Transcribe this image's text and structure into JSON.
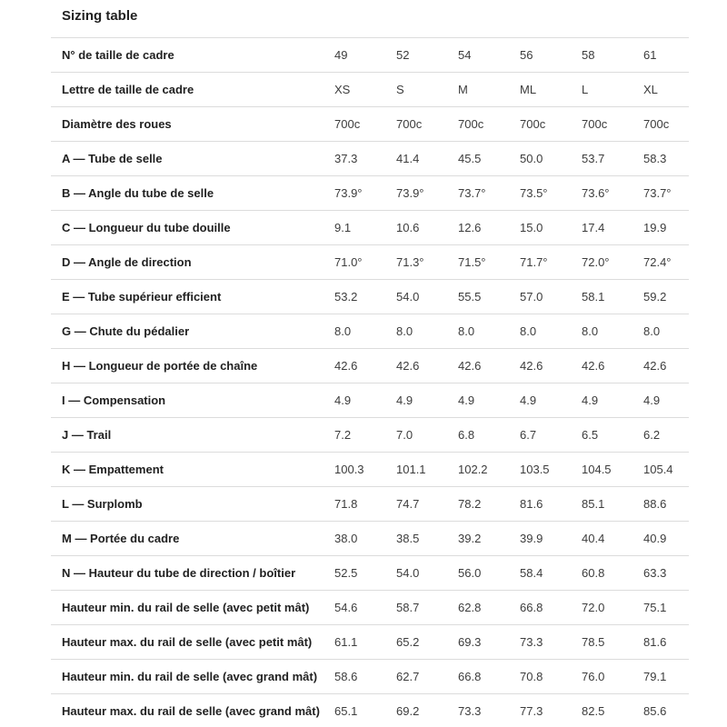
{
  "title": "Sizing table",
  "table": {
    "size_numbers": [
      "49",
      "52",
      "54",
      "56",
      "58",
      "61"
    ],
    "rows": [
      {
        "label": "N° de taille de cadre",
        "values": [
          "49",
          "52",
          "54",
          "56",
          "58",
          "61"
        ]
      },
      {
        "label": "Lettre de taille de cadre",
        "values": [
          "XS",
          "S",
          "M",
          "ML",
          "L",
          "XL"
        ]
      },
      {
        "label": "Diamètre des roues",
        "values": [
          "700c",
          "700c",
          "700c",
          "700c",
          "700c",
          "700c"
        ]
      },
      {
        "label": "A — Tube de selle",
        "values": [
          "37.3",
          "41.4",
          "45.5",
          "50.0",
          "53.7",
          "58.3"
        ]
      },
      {
        "label": "B — Angle du tube de selle",
        "values": [
          "73.9°",
          "73.9°",
          "73.7°",
          "73.5°",
          "73.6°",
          "73.7°"
        ]
      },
      {
        "label": "C — Longueur du tube douille",
        "values": [
          "9.1",
          "10.6",
          "12.6",
          "15.0",
          "17.4",
          "19.9"
        ]
      },
      {
        "label": "D — Angle de direction",
        "values": [
          "71.0°",
          "71.3°",
          "71.5°",
          "71.7°",
          "72.0°",
          "72.4°"
        ]
      },
      {
        "label": "E — Tube supérieur efficient",
        "values": [
          "53.2",
          "54.0",
          "55.5",
          "57.0",
          "58.1",
          "59.2"
        ]
      },
      {
        "label": "G — Chute du pédalier",
        "values": [
          "8.0",
          "8.0",
          "8.0",
          "8.0",
          "8.0",
          "8.0"
        ]
      },
      {
        "label": "H — Longueur de portée de chaîne",
        "values": [
          "42.6",
          "42.6",
          "42.6",
          "42.6",
          "42.6",
          "42.6"
        ]
      },
      {
        "label": "I — Compensation",
        "values": [
          "4.9",
          "4.9",
          "4.9",
          "4.9",
          "4.9",
          "4.9"
        ]
      },
      {
        "label": "J — Trail",
        "values": [
          "7.2",
          "7.0",
          "6.8",
          "6.7",
          "6.5",
          "6.2"
        ]
      },
      {
        "label": "K — Empattement",
        "values": [
          "100.3",
          "101.1",
          "102.2",
          "103.5",
          "104.5",
          "105.4"
        ]
      },
      {
        "label": "L — Surplomb",
        "values": [
          "71.8",
          "74.7",
          "78.2",
          "81.6",
          "85.1",
          "88.6"
        ]
      },
      {
        "label": "M — Portée du cadre",
        "values": [
          "38.0",
          "38.5",
          "39.2",
          "39.9",
          "40.4",
          "40.9"
        ]
      },
      {
        "label": "N — Hauteur du tube de direction / boîtier",
        "values": [
          "52.5",
          "54.0",
          "56.0",
          "58.4",
          "60.8",
          "63.3"
        ]
      },
      {
        "label": "Hauteur min. du rail de selle (avec petit mât)",
        "values": [
          "54.6",
          "58.7",
          "62.8",
          "66.8",
          "72.0",
          "75.1"
        ]
      },
      {
        "label": "Hauteur max. du rail de selle (avec petit mât)",
        "values": [
          "61.1",
          "65.2",
          "69.3",
          "73.3",
          "78.5",
          "81.6"
        ]
      },
      {
        "label": "Hauteur min. du rail de selle (avec grand mât)",
        "values": [
          "58.6",
          "62.7",
          "66.8",
          "70.8",
          "76.0",
          "79.1"
        ]
      },
      {
        "label": "Hauteur max. du rail de selle (avec grand mât)",
        "values": [
          "65.1",
          "69.2",
          "73.3",
          "77.3",
          "82.5",
          "85.6"
        ]
      }
    ]
  },
  "colors": {
    "background": "#ffffff",
    "label_text": "#212121",
    "value_text": "#3c3c3c",
    "divider": "#dcdcdc"
  }
}
